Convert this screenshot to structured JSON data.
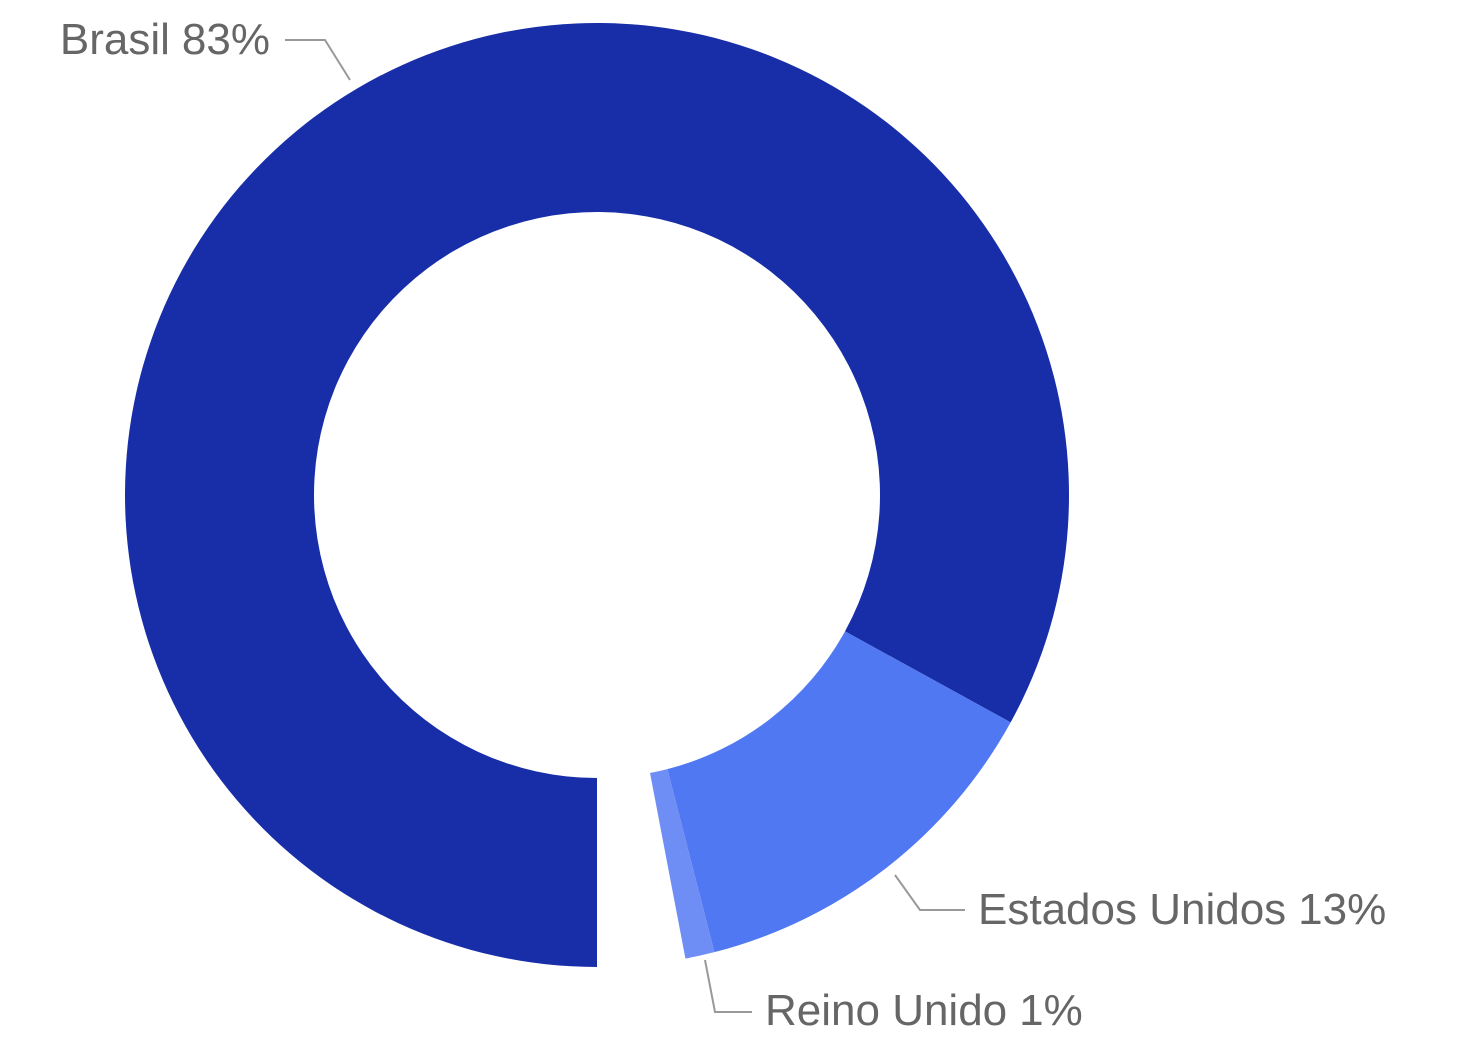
{
  "chart_data": {
    "type": "donut",
    "categories": [
      "Brasil",
      "Estados Unidos",
      "Reino Unido"
    ],
    "values": [
      83,
      13,
      1
    ],
    "value_labels": [
      "83%",
      "13%",
      "1%"
    ],
    "colors": [
      "#182ea8",
      "#5078f2",
      "#6f8ef5"
    ]
  }
}
